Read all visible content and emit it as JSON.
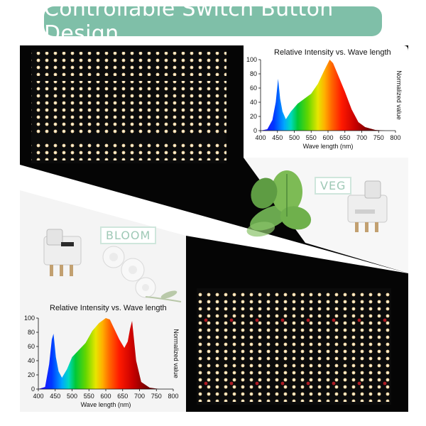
{
  "header": {
    "title": "Controllable Switch Button Design"
  },
  "labels": {
    "veg": "VEG",
    "bloom": "BLOOM"
  },
  "colors": {
    "title_bg": "#7fbfa8",
    "panel_dark": "#050505",
    "label_text": "#9fc9b6"
  },
  "chart_data": [
    {
      "type": "area",
      "title": "Relative Intensity vs. Wave length",
      "xlabel": "Wave length (nm)",
      "ylabel": "Normalized value",
      "xlim": [
        400,
        800
      ],
      "ylim": [
        0,
        100
      ],
      "xticks": [
        "400",
        "450",
        "500",
        "550",
        "600",
        "650",
        "700",
        "750",
        "800"
      ],
      "yticks": [
        "0",
        "20",
        "40",
        "60",
        "80",
        "100"
      ],
      "x": [
        400,
        420,
        435,
        445,
        452,
        458,
        465,
        475,
        490,
        510,
        530,
        550,
        570,
        590,
        605,
        615,
        630,
        650,
        670,
        690,
        710,
        740,
        770,
        800
      ],
      "y": [
        0,
        2,
        15,
        40,
        73,
        45,
        27,
        16,
        27,
        38,
        45,
        52,
        66,
        86,
        100,
        95,
        78,
        55,
        30,
        12,
        5,
        1,
        0,
        0
      ]
    },
    {
      "type": "area",
      "title": "Relative Intensity vs. Wave length",
      "xlabel": "Wave length (nm)",
      "ylabel": "Normalized value",
      "xlim": [
        400,
        800
      ],
      "ylim": [
        0,
        100
      ],
      "xticks": [
        "400",
        "450",
        "500",
        "550",
        "600",
        "650",
        "700",
        "750",
        "800"
      ],
      "yticks": [
        "0",
        "20",
        "40",
        "60",
        "80",
        "100"
      ],
      "x": [
        400,
        420,
        432,
        440,
        445,
        452,
        460,
        470,
        485,
        500,
        520,
        540,
        560,
        580,
        600,
        612,
        625,
        640,
        655,
        665,
        672,
        678,
        690,
        705,
        730,
        760,
        800
      ],
      "y": [
        0,
        3,
        35,
        70,
        78,
        45,
        25,
        16,
        28,
        45,
        55,
        65,
        82,
        93,
        100,
        98,
        85,
        70,
        58,
        67,
        85,
        96,
        40,
        10,
        2,
        0,
        0
      ]
    }
  ]
}
